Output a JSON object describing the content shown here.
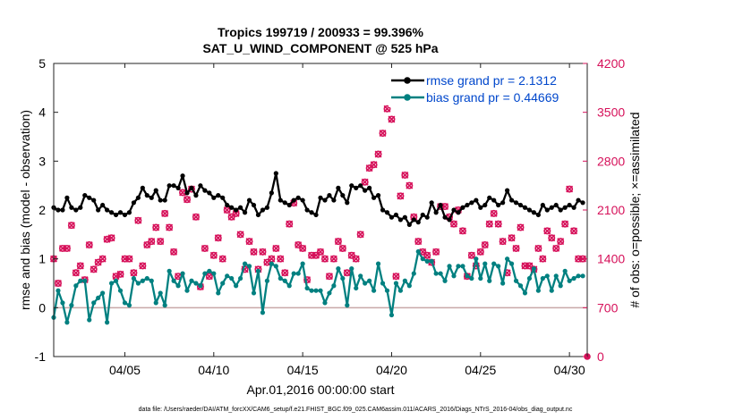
{
  "chart_data": {
    "type": "line",
    "title": "Tropics 199719 / 200933 = 99.396%",
    "subtitle": "SAT_U_WIND_COMPONENT @ 525 hPa",
    "xlabel": "Apr.01,2016 00:00:00 start",
    "ylabel": "rmse and bias (model - observation)",
    "ylabel_right": "# of obs: o=possible; ×=assimilated",
    "xlim": [
      1,
      31
    ],
    "ylim": [
      -1,
      5
    ],
    "ylim_right": [
      0,
      4200
    ],
    "x_ticks": [
      5,
      10,
      15,
      20,
      25,
      30
    ],
    "x_tick_labels": [
      "04/05",
      "04/10",
      "04/15",
      "04/20",
      "04/25",
      "04/30"
    ],
    "y_ticks": [
      -1,
      0,
      1,
      2,
      3,
      4,
      5
    ],
    "y_tick_labels": [
      "-1",
      "0",
      "1",
      "2",
      "3",
      "4",
      "5"
    ],
    "y_right_ticks": [
      0,
      700,
      1400,
      2100,
      2800,
      3500,
      4200
    ],
    "y_right_tick_labels": [
      "0",
      "700",
      "1400",
      "2100",
      "2800",
      "3500",
      "4200"
    ],
    "zero_line": 0,
    "footnote": "data file: /Users/raeder/DAI/ATM_forcXX/CAM6_setup/f.e21.FHIST_BGC.f09_025.CAM6assim.011/ACARS_2016/Diags_NTrS_2016-04/obs_diag_output.nc",
    "colors": {
      "rmse": "#000000",
      "bias": "#008080",
      "obs": "#d6115a",
      "zero": "#c8a8a8",
      "legend_text": "#0047cc"
    },
    "series": [
      {
        "name": "rmse grand pr = 2.1312",
        "color": "#000000",
        "x": [
          1.0,
          1.25,
          1.5,
          1.75,
          2.0,
          2.25,
          2.5,
          2.75,
          3.0,
          3.25,
          3.5,
          3.75,
          4.0,
          4.25,
          4.5,
          4.75,
          5.0,
          5.25,
          5.5,
          5.75,
          6.0,
          6.25,
          6.5,
          6.75,
          7.0,
          7.25,
          7.5,
          7.75,
          8.0,
          8.25,
          8.5,
          8.75,
          9.0,
          9.25,
          9.5,
          9.75,
          10.0,
          10.25,
          10.5,
          10.75,
          11.0,
          11.25,
          11.5,
          11.75,
          12.0,
          12.25,
          12.5,
          12.75,
          13.0,
          13.25,
          13.5,
          13.75,
          14.0,
          14.25,
          14.5,
          14.75,
          15.0,
          15.25,
          15.5,
          15.75,
          16.0,
          16.25,
          16.5,
          16.75,
          17.0,
          17.25,
          17.5,
          17.75,
          18.0,
          18.25,
          18.5,
          18.75,
          19.0,
          19.25,
          19.5,
          19.75,
          20.0,
          20.25,
          20.5,
          20.75,
          21.0,
          21.25,
          21.5,
          21.75,
          22.0,
          22.25,
          22.5,
          22.75,
          23.0,
          23.25,
          23.5,
          23.75,
          24.0,
          24.25,
          24.5,
          24.75,
          25.0,
          25.25,
          25.5,
          25.75,
          26.0,
          26.25,
          26.5,
          26.75,
          27.0,
          27.25,
          27.5,
          27.75,
          28.0,
          28.25,
          28.5,
          28.75,
          29.0,
          29.25,
          29.5,
          29.75,
          30.0,
          30.25,
          30.5,
          30.75
        ],
        "values": [
          2.05,
          2.0,
          2.0,
          2.25,
          2.05,
          2.0,
          2.05,
          2.3,
          2.25,
          2.2,
          2.0,
          2.1,
          2.0,
          1.95,
          1.9,
          1.95,
          1.9,
          1.95,
          2.15,
          2.25,
          2.45,
          2.3,
          2.25,
          2.4,
          2.2,
          2.2,
          2.5,
          2.5,
          2.45,
          2.7,
          2.35,
          2.45,
          2.3,
          2.5,
          2.4,
          2.35,
          2.25,
          2.3,
          2.25,
          2.1,
          2.05,
          2.0,
          2.05,
          1.95,
          2.2,
          2.1,
          1.9,
          2.0,
          2.05,
          2.35,
          2.75,
          2.2,
          2.15,
          2.1,
          2.2,
          2.25,
          2.2,
          2.0,
          1.95,
          1.9,
          2.25,
          2.2,
          2.3,
          2.2,
          2.45,
          2.3,
          2.15,
          2.5,
          2.45,
          2.5,
          2.4,
          2.45,
          2.25,
          2.3,
          2.0,
          1.95,
          1.85,
          1.9,
          1.8,
          1.85,
          1.7,
          1.8,
          1.75,
          1.9,
          1.85,
          2.15,
          1.95,
          2.1,
          1.85,
          1.8,
          2.0,
          1.95,
          2.05,
          2.1,
          2.15,
          2.2,
          2.05,
          2.1,
          2.25,
          2.2,
          2.1,
          2.15,
          2.4,
          2.2,
          2.15,
          2.1,
          2.05,
          2.0,
          1.95,
          1.9,
          2.1,
          2.0,
          2.05,
          2.1,
          2.0,
          2.05,
          2.1,
          2.05,
          2.2,
          2.15
        ],
        "marker": "filled-circle"
      },
      {
        "name": "bias grand pr = 0.44669",
        "color": "#008080",
        "x": [
          1.0,
          1.25,
          1.5,
          1.75,
          2.0,
          2.25,
          2.5,
          2.75,
          3.0,
          3.25,
          3.5,
          3.75,
          4.0,
          4.25,
          4.5,
          4.75,
          5.0,
          5.25,
          5.5,
          5.75,
          6.0,
          6.25,
          6.5,
          6.75,
          7.0,
          7.25,
          7.5,
          7.75,
          8.0,
          8.25,
          8.5,
          8.75,
          9.0,
          9.25,
          9.5,
          9.75,
          10.0,
          10.25,
          10.5,
          10.75,
          11.0,
          11.25,
          11.5,
          11.75,
          12.0,
          12.25,
          12.5,
          12.75,
          13.0,
          13.25,
          13.5,
          13.75,
          14.0,
          14.25,
          14.5,
          14.75,
          15.0,
          15.25,
          15.5,
          15.75,
          16.0,
          16.25,
          16.5,
          16.75,
          17.0,
          17.25,
          17.5,
          17.75,
          18.0,
          18.25,
          18.5,
          18.75,
          19.0,
          19.25,
          19.5,
          19.75,
          20.0,
          20.25,
          20.5,
          20.75,
          21.0,
          21.25,
          21.5,
          21.75,
          22.0,
          22.25,
          22.5,
          22.75,
          23.0,
          23.25,
          23.5,
          23.75,
          24.0,
          24.25,
          24.5,
          24.75,
          25.0,
          25.25,
          25.5,
          25.75,
          26.0,
          26.25,
          26.5,
          26.75,
          27.0,
          27.25,
          27.5,
          27.75,
          28.0,
          28.25,
          28.5,
          28.75,
          29.0,
          29.25,
          29.5,
          29.75,
          30.0,
          30.25,
          30.5,
          30.75
        ],
        "values": [
          -0.2,
          0.35,
          0.1,
          -0.3,
          0.05,
          0.45,
          0.55,
          0.55,
          -0.25,
          0.1,
          0.2,
          0.3,
          -0.3,
          0.5,
          0.55,
          0.35,
          0.1,
          0.05,
          0.6,
          0.5,
          0.55,
          0.6,
          0.55,
          0.1,
          0.3,
          0.05,
          0.75,
          0.55,
          0.45,
          0.7,
          0.35,
          0.55,
          0.5,
          0.45,
          0.7,
          0.75,
          0.7,
          0.3,
          0.5,
          0.65,
          0.6,
          0.45,
          0.6,
          0.9,
          0.85,
          0.3,
          0.75,
          -0.1,
          0.55,
          0.9,
          0.85,
          0.6,
          0.55,
          0.45,
          0.7,
          0.7,
          0.9,
          0.4,
          0.35,
          0.35,
          0.35,
          0.1,
          0.3,
          0.45,
          0.8,
          0.6,
          0.05,
          0.8,
          0.4,
          0.65,
          0.5,
          0.55,
          0.35,
          0.9,
          0.5,
          0.35,
          -0.15,
          0.5,
          0.35,
          0.55,
          0.45,
          0.7,
          1.15,
          1.0,
          0.95,
          0.95,
          0.7,
          0.7,
          0.55,
          0.85,
          0.65,
          0.85,
          0.85,
          0.65,
          0.6,
          1.0,
          0.6,
          0.9,
          0.55,
          0.9,
          0.85,
          0.5,
          1.0,
          0.9,
          0.55,
          0.45,
          0.3,
          0.6,
          0.8,
          0.35,
          0.6,
          0.65,
          0.35,
          0.65,
          0.45,
          0.75,
          0.55,
          0.6,
          0.65,
          0.65
        ],
        "marker": "filled-circle"
      },
      {
        "name": "# of obs possible/assimilated",
        "color": "#d6115a",
        "axis": "right",
        "x": [
          1.0,
          1.25,
          1.5,
          1.75,
          2.0,
          2.25,
          2.5,
          2.75,
          3.0,
          3.25,
          3.5,
          3.75,
          4.0,
          4.25,
          4.5,
          4.75,
          5.0,
          5.25,
          5.5,
          5.75,
          6.0,
          6.25,
          6.5,
          6.75,
          7.0,
          7.25,
          7.5,
          7.75,
          8.0,
          8.25,
          8.5,
          8.75,
          9.0,
          9.25,
          9.5,
          9.75,
          10.0,
          10.25,
          10.5,
          10.75,
          11.0,
          11.25,
          11.5,
          11.75,
          12.0,
          12.25,
          12.5,
          12.75,
          13.0,
          13.25,
          13.5,
          13.75,
          14.0,
          14.25,
          14.5,
          14.75,
          15.0,
          15.25,
          15.5,
          15.75,
          16.0,
          16.25,
          16.5,
          16.75,
          17.0,
          17.25,
          17.5,
          17.75,
          18.0,
          18.25,
          18.5,
          18.75,
          19.0,
          19.25,
          19.5,
          19.75,
          20.0,
          20.25,
          20.5,
          20.75,
          21.0,
          21.25,
          21.5,
          21.75,
          22.0,
          22.25,
          22.5,
          22.75,
          23.0,
          23.25,
          23.5,
          23.75,
          24.0,
          24.25,
          24.5,
          24.75,
          25.0,
          25.25,
          25.5,
          25.75,
          26.0,
          26.25,
          26.5,
          26.75,
          27.0,
          27.25,
          27.5,
          27.75,
          28.0,
          28.25,
          28.5,
          28.75,
          29.0,
          29.25,
          29.5,
          29.75,
          30.0,
          30.25,
          30.5,
          30.75
        ],
        "values": [
          1400,
          1050,
          1550,
          1550,
          1880,
          1200,
          1300,
          1100,
          1600,
          1250,
          1350,
          1400,
          1680,
          1700,
          1150,
          1180,
          1400,
          1400,
          1200,
          1950,
          1300,
          1600,
          1650,
          1850,
          1650,
          2050,
          1850,
          1500,
          1150,
          2350,
          2250,
          2400,
          2000,
          1000,
          1550,
          1150,
          1450,
          1700,
          1400,
          2100,
          2000,
          2050,
          1750,
          1250,
          1650,
          1500,
          1250,
          1500,
          1350,
          1400,
          1550,
          1400,
          1200,
          1900,
          2200,
          1600,
          1550,
          1100,
          1450,
          1450,
          1500,
          1400,
          1150,
          1400,
          1650,
          1550,
          1200,
          1450,
          1400,
          1750,
          2500,
          2700,
          2750,
          2900,
          3200,
          3550,
          3400,
          1150,
          2300,
          2600,
          2450,
          2000,
          1650,
          1500,
          1450,
          1350,
          1500,
          2150,
          2150,
          2000,
          1900,
          2100,
          1800,
          1150,
          1450,
          1300,
          1500,
          1600,
          1900,
          2050,
          1900,
          1650,
          1200,
          1700,
          1550,
          1850,
          1300,
          1300,
          1250,
          1550,
          1400,
          1800,
          1700,
          1550,
          1650,
          1900,
          2400,
          1800,
          1400,
          1400
        ],
        "marker": "cross"
      }
    ],
    "legend": {
      "placement": "top-right",
      "entries": [
        "rmse grand pr = 2.1312",
        "bias grand pr = 0.44669"
      ]
    }
  }
}
